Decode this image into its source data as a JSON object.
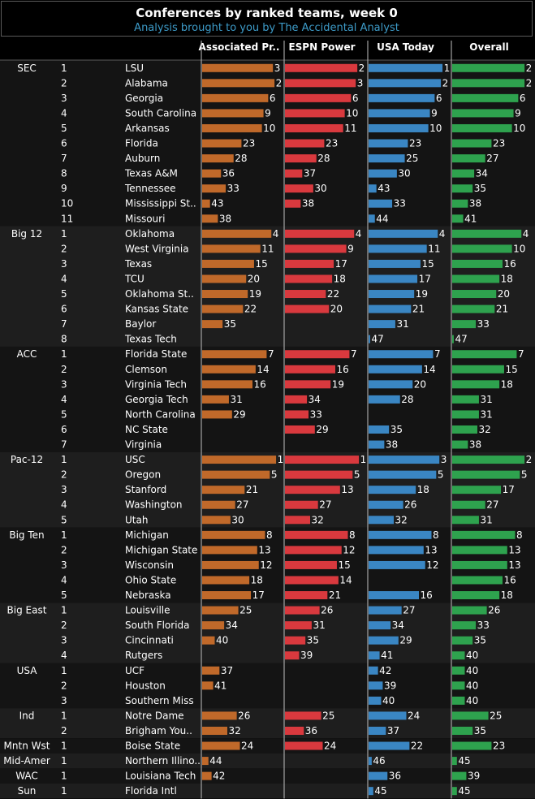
{
  "header": {
    "title": "Conferences by ranked teams, week 0",
    "subtitle_prefix": "Analysis brought to you by ",
    "subtitle_link": "The Accidental Analyst"
  },
  "colors": {
    "ap": "#c0692a",
    "espn": "#d9393e",
    "usa": "#3a86c3",
    "overall": "#2ea24e",
    "band_dark": "#141414",
    "band_light": "#1e1e1e"
  },
  "chart_data": {
    "type": "bar",
    "layout": "small-multiples",
    "columns": [
      "Associated Pr..",
      "ESPN Power",
      "USA Today",
      "Overall"
    ],
    "series_keys": [
      "ap",
      "espn",
      "usa",
      "overall"
    ],
    "value_axis": "rank (1 = best, longer bar)",
    "rank_range": [
      1,
      47
    ],
    "conferences": [
      {
        "name": "SEC",
        "teams": [
          {
            "n": "1",
            "team": "LSU",
            "v": [
              3,
              2,
              1,
              2
            ]
          },
          {
            "n": "2",
            "team": "Alabama",
            "v": [
              2,
              3,
              2,
              2
            ]
          },
          {
            "n": "3",
            "team": "Georgia",
            "v": [
              6,
              6,
              6,
              6
            ]
          },
          {
            "n": "4",
            "team": "South Carolina",
            "v": [
              9,
              10,
              9,
              9
            ]
          },
          {
            "n": "5",
            "team": "Arkansas",
            "v": [
              10,
              11,
              10,
              10
            ]
          },
          {
            "n": "6",
            "team": "Florida",
            "v": [
              23,
              23,
              23,
              23
            ]
          },
          {
            "n": "7",
            "team": "Auburn",
            "v": [
              28,
              28,
              25,
              27
            ]
          },
          {
            "n": "8",
            "team": "Texas A&M",
            "v": [
              36,
              37,
              30,
              34
            ]
          },
          {
            "n": "9",
            "team": "Tennessee",
            "v": [
              33,
              30,
              43,
              35
            ]
          },
          {
            "n": "10",
            "team": "Mississippi St..",
            "v": [
              43,
              38,
              33,
              38
            ]
          },
          {
            "n": "11",
            "team": "Missouri",
            "v": [
              38,
              null,
              44,
              41
            ]
          }
        ]
      },
      {
        "name": "Big 12",
        "teams": [
          {
            "n": "1",
            "team": "Oklahoma",
            "v": [
              4,
              4,
              4,
              4
            ]
          },
          {
            "n": "2",
            "team": "West Virginia",
            "v": [
              11,
              9,
              11,
              10
            ]
          },
          {
            "n": "3",
            "team": "Texas",
            "v": [
              15,
              17,
              15,
              16
            ]
          },
          {
            "n": "4",
            "team": "TCU",
            "v": [
              20,
              18,
              17,
              18
            ]
          },
          {
            "n": "5",
            "team": "Oklahoma St..",
            "v": [
              19,
              22,
              19,
              20
            ]
          },
          {
            "n": "6",
            "team": "Kansas State",
            "v": [
              22,
              20,
              21,
              21
            ]
          },
          {
            "n": "7",
            "team": "Baylor",
            "v": [
              35,
              null,
              31,
              33
            ]
          },
          {
            "n": "8",
            "team": "Texas Tech",
            "v": [
              null,
              null,
              47,
              47
            ]
          }
        ]
      },
      {
        "name": "ACC",
        "teams": [
          {
            "n": "1",
            "team": "Florida State",
            "v": [
              7,
              7,
              7,
              7
            ]
          },
          {
            "n": "2",
            "team": "Clemson",
            "v": [
              14,
              16,
              14,
              15
            ]
          },
          {
            "n": "3",
            "team": "Virginia Tech",
            "v": [
              16,
              19,
              20,
              18
            ]
          },
          {
            "n": "4",
            "team": "Georgia Tech",
            "v": [
              31,
              34,
              28,
              31
            ]
          },
          {
            "n": "5",
            "team": "North Carolina",
            "v": [
              29,
              33,
              null,
              31
            ]
          },
          {
            "n": "6",
            "team": "NC State",
            "v": [
              null,
              29,
              35,
              32
            ]
          },
          {
            "n": "7",
            "team": "Virginia",
            "v": [
              null,
              null,
              38,
              38
            ]
          }
        ]
      },
      {
        "name": "Pac-12",
        "teams": [
          {
            "n": "1",
            "team": "USC",
            "v": [
              1,
              1,
              3,
              2
            ]
          },
          {
            "n": "2",
            "team": "Oregon",
            "v": [
              5,
              5,
              5,
              5
            ]
          },
          {
            "n": "3",
            "team": "Stanford",
            "v": [
              21,
              13,
              18,
              17
            ]
          },
          {
            "n": "4",
            "team": "Washington",
            "v": [
              27,
              27,
              26,
              27
            ]
          },
          {
            "n": "5",
            "team": "Utah",
            "v": [
              30,
              32,
              32,
              31
            ]
          }
        ]
      },
      {
        "name": "Big Ten",
        "teams": [
          {
            "n": "1",
            "team": "Michigan",
            "v": [
              8,
              8,
              8,
              8
            ]
          },
          {
            "n": "2",
            "team": "Michigan State",
            "v": [
              13,
              12,
              13,
              13
            ]
          },
          {
            "n": "3",
            "team": "Wisconsin",
            "v": [
              12,
              15,
              12,
              13
            ]
          },
          {
            "n": "4",
            "team": "Ohio State",
            "v": [
              18,
              14,
              null,
              16
            ]
          },
          {
            "n": "5",
            "team": "Nebraska",
            "v": [
              17,
              21,
              16,
              18
            ]
          }
        ]
      },
      {
        "name": "Big East",
        "teams": [
          {
            "n": "1",
            "team": "Louisville",
            "v": [
              25,
              26,
              27,
              26
            ]
          },
          {
            "n": "2",
            "team": "South Florida",
            "v": [
              34,
              31,
              34,
              33
            ]
          },
          {
            "n": "3",
            "team": "Cincinnati",
            "v": [
              40,
              35,
              29,
              35
            ]
          },
          {
            "n": "4",
            "team": "Rutgers",
            "v": [
              null,
              39,
              41,
              40
            ]
          }
        ]
      },
      {
        "name": "USA",
        "teams": [
          {
            "n": "1",
            "team": "UCF",
            "v": [
              37,
              null,
              42,
              40
            ]
          },
          {
            "n": "2",
            "team": "Houston",
            "v": [
              41,
              null,
              39,
              40
            ]
          },
          {
            "n": "3",
            "team": "Southern Miss",
            "v": [
              null,
              null,
              40,
              40
            ]
          }
        ]
      },
      {
        "name": "Ind",
        "teams": [
          {
            "n": "1",
            "team": "Notre Dame",
            "v": [
              26,
              25,
              24,
              25
            ]
          },
          {
            "n": "2",
            "team": "Brigham You..",
            "v": [
              32,
              36,
              37,
              35
            ]
          }
        ]
      },
      {
        "name": "Mntn Wst",
        "teams": [
          {
            "n": "1",
            "team": "Boise State",
            "v": [
              24,
              24,
              22,
              23
            ]
          }
        ]
      },
      {
        "name": "Mid-Amer",
        "teams": [
          {
            "n": "1",
            "team": "Northern Illino..",
            "v": [
              44,
              null,
              46,
              45
            ]
          }
        ]
      },
      {
        "name": "WAC",
        "teams": [
          {
            "n": "1",
            "team": "Louisiana Tech",
            "v": [
              42,
              null,
              36,
              39
            ]
          }
        ]
      },
      {
        "name": "Sun",
        "teams": [
          {
            "n": "1",
            "team": "Florida Intl",
            "v": [
              null,
              null,
              45,
              45
            ]
          }
        ]
      }
    ]
  }
}
